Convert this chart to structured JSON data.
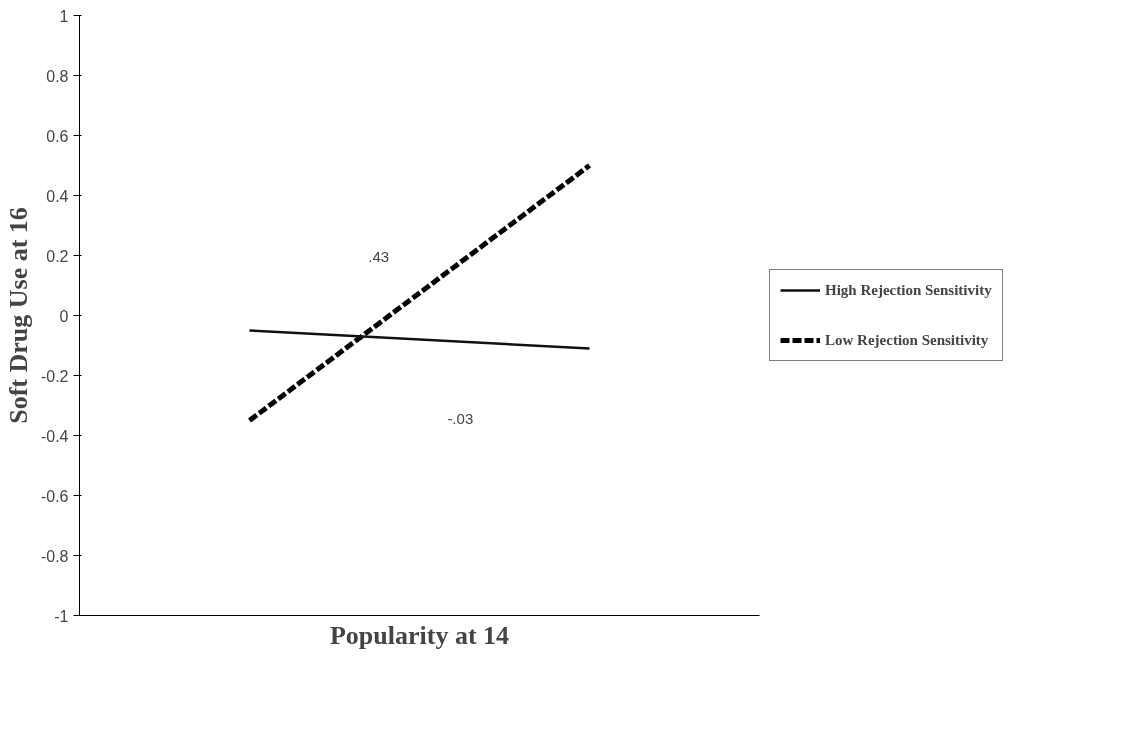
{
  "chart_data": {
    "type": "line",
    "xlabel": "Popularity at 14",
    "ylabel": "Soft Drug Use at 16",
    "categories": [
      null,
      null
    ],
    "series": [
      {
        "name": "High Rejection Sensitivity",
        "color": "#111111",
        "values": [
          -0.05,
          -0.11
        ],
        "line_style": "solid"
      },
      {
        "name": "Low Rejection Sensitivity",
        "color": "#000000",
        "values": [
          -0.35,
          0.5
        ],
        "line_style": "dashed"
      }
    ],
    "annotations": [
      ".43",
      "-.03"
    ],
    "ylim": [
      -1,
      1
    ],
    "yticks": [
      {
        "value": -1,
        "label": "-1"
      },
      {
        "value": -0.8,
        "label": "-0.8"
      },
      {
        "value": -0.6,
        "label": "-0.6"
      },
      {
        "value": -0.4,
        "label": "-0.4"
      },
      {
        "value": -0.2,
        "label": "-0.2"
      },
      0,
      {
        "value": 0.2,
        "label": "0.2"
      },
      {
        "value": 0.4,
        "label": "0.4"
      },
      {
        "value": 0.6,
        "label": "0.6"
      },
      {
        "value": 0.8,
        "label": "0.8"
      },
      1
    ],
    "grid": false,
    "legend": "right",
    "marker": "none",
    "tick_labels": "y"
  }
}
